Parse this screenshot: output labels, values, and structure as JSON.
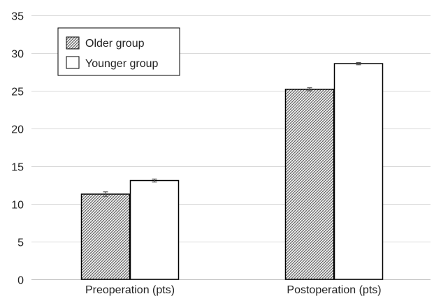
{
  "chart_data": {
    "type": "bar",
    "categories": [
      "Preoperation (pts)",
      "Postoperation (pts)"
    ],
    "series": [
      {
        "name": "Older group",
        "values": [
          11.3,
          25.2
        ],
        "error": [
          0.3,
          0.2
        ],
        "fill": "hatched"
      },
      {
        "name": "Younger group",
        "values": [
          13.1,
          28.6
        ],
        "error": [
          0.2,
          0.15
        ],
        "fill": "#ffffff"
      }
    ],
    "ylim": [
      0,
      35
    ],
    "yticks": [
      0,
      5,
      10,
      15,
      20,
      25,
      30,
      35
    ],
    "grid": true,
    "legend_position": "top-left",
    "colors": {
      "grid": "#d9d9d9",
      "bar_stroke": "#000000",
      "hatch": "#5a5a5a",
      "errorbar": "#555555"
    }
  }
}
